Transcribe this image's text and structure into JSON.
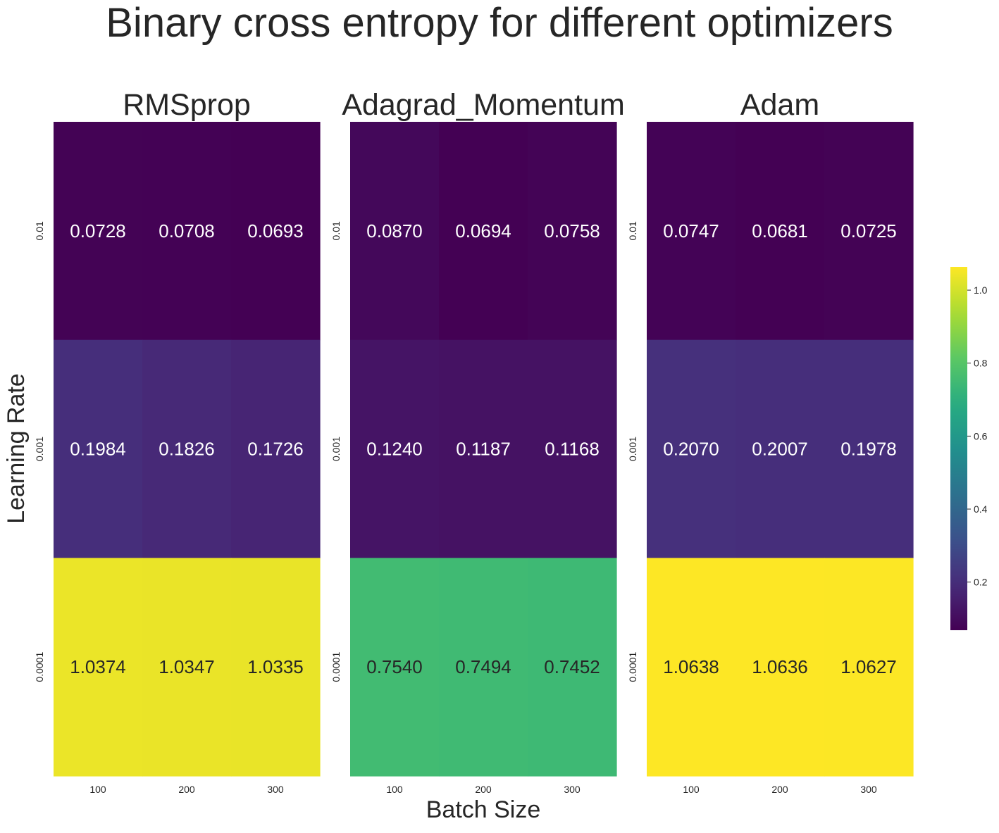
{
  "chart_data": {
    "type": "heatmap",
    "title": "Binary cross entropy for different optimizers",
    "xlabel": "Batch Size",
    "ylabel": "Learning Rate",
    "x_categories": [
      "100",
      "200",
      "300"
    ],
    "y_categories": [
      "0.01",
      "0.001",
      "0.0001"
    ],
    "colormap": "viridis",
    "value_range": [
      0.0681,
      1.0638
    ],
    "panels": [
      {
        "name": "RMSprop",
        "values": [
          [
            0.0728,
            0.0708,
            0.0693
          ],
          [
            0.1984,
            0.1826,
            0.1726
          ],
          [
            1.0374,
            1.0347,
            1.0335
          ]
        ]
      },
      {
        "name": "Adagrad_Momentum",
        "values": [
          [
            0.087,
            0.0694,
            0.0758
          ],
          [
            0.124,
            0.1187,
            0.1168
          ],
          [
            0.754,
            0.7494,
            0.7452
          ]
        ]
      },
      {
        "name": "Adam",
        "values": [
          [
            0.0747,
            0.0681,
            0.0725
          ],
          [
            0.207,
            0.2007,
            0.1978
          ],
          [
            1.0638,
            1.0636,
            1.0627
          ]
        ]
      }
    ],
    "colorbar": {
      "ticks": [
        0.2,
        0.4,
        0.6,
        0.8,
        1.0
      ],
      "tick_labels": [
        "0.2",
        "0.4",
        "0.6",
        "0.8",
        "1.0"
      ]
    },
    "annotation_colors": {
      "light": "#ffffff",
      "dark": "#262626"
    },
    "tick_color": "#262626"
  }
}
